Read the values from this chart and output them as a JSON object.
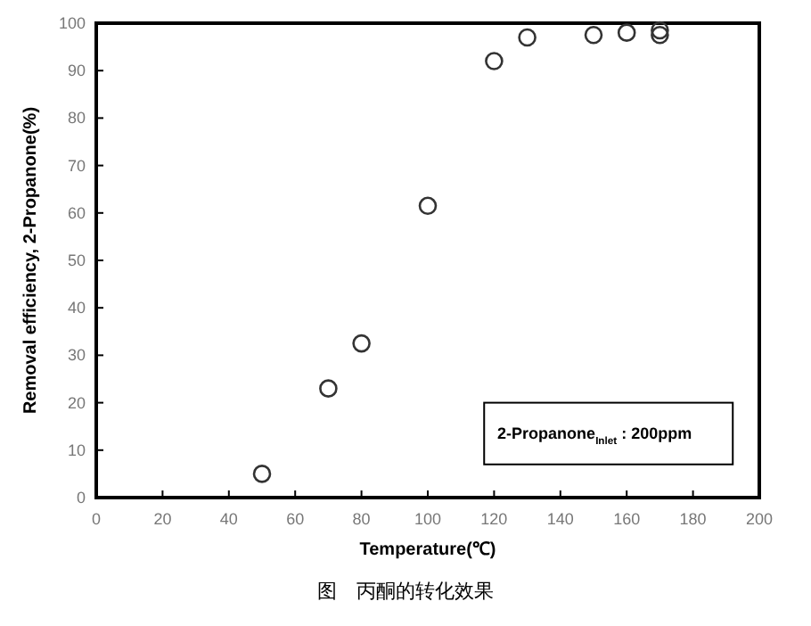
{
  "chart_data": {
    "type": "scatter",
    "xlabel": "Temperature(℃)",
    "ylabel": "Removal efficiency, 2-Propanone(%)",
    "annotations": [
      "2-Propanone$_{Inlet}$ : 200ppm",
      "图　丙酮的转化效果"
    ],
    "x": [
      50,
      70,
      80,
      100,
      120,
      130,
      150,
      160,
      170,
      170
    ],
    "values": [
      5,
      23,
      32.5,
      61.5,
      92,
      97,
      97.5,
      98,
      98.5,
      97.5
    ],
    "color": "#333333",
    "marker": "circle",
    "grid": false,
    "xlim": [
      0,
      200
    ],
    "xticks": [
      0,
      20,
      40,
      60,
      80,
      100,
      120,
      140,
      160,
      180,
      200
    ],
    "ylim": [
      0,
      100
    ],
    "yticks": [
      0,
      10,
      20,
      30,
      40,
      50,
      60,
      70,
      80,
      90,
      100
    ]
  }
}
